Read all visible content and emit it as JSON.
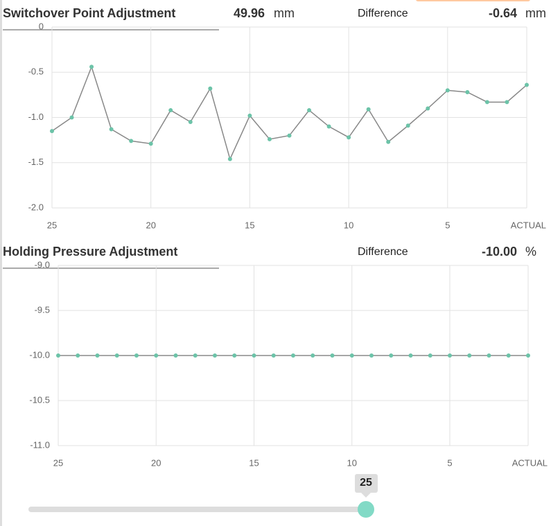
{
  "chart_data": [
    {
      "type": "line",
      "title": "Switchover Point Adjustment",
      "readout": "49.96",
      "unit": "mm",
      "difference_label": "Difference",
      "difference": "-0.64",
      "difference_unit": "mm",
      "categories": [
        "25",
        null,
        null,
        null,
        null,
        "20",
        null,
        null,
        null,
        null,
        "15",
        null,
        null,
        null,
        null,
        "10",
        null,
        null,
        null,
        null,
        "5",
        null,
        null,
        null,
        "ACTUAL"
      ],
      "series": [
        {
          "color": "#6cc3a8",
          "values": [
            -1.15,
            -1.0,
            -0.44,
            -1.13,
            -1.26,
            -1.29,
            -0.92,
            -1.05,
            -0.68,
            -1.46,
            -0.98,
            -1.24,
            -1.2,
            -0.92,
            -1.1,
            -1.22,
            -0.91,
            -1.27,
            -1.09,
            -0.9,
            -0.7,
            -0.72,
            -0.83,
            -0.83,
            -0.64
          ]
        }
      ],
      "ylim": [
        -2,
        0
      ],
      "yticks": [
        0,
        -0.5,
        {
          "value": -1,
          "label": "-1.0"
        },
        -1.5,
        {
          "value": -2,
          "label": "-2.0"
        }
      ],
      "grid": true
    },
    {
      "type": "line",
      "title": "Holding Pressure Adjustment",
      "difference_label": "Difference",
      "difference": "-10.00",
      "difference_unit": "%",
      "categories": [
        "25",
        null,
        null,
        null,
        null,
        "20",
        null,
        null,
        null,
        null,
        "15",
        null,
        null,
        null,
        null,
        "10",
        null,
        null,
        null,
        null,
        "5",
        null,
        null,
        null,
        "ACTUAL"
      ],
      "series": [
        {
          "color": "#6cc3a8",
          "values": [
            -10,
            -10,
            -10,
            -10,
            -10,
            -10,
            -10,
            -10,
            -10,
            -10,
            -10,
            -10,
            -10,
            -10,
            -10,
            -10,
            -10,
            -10,
            -10,
            -10,
            -10,
            -10,
            -10,
            -10,
            -10
          ]
        }
      ],
      "ylim": [
        -11,
        -9
      ],
      "yticks": [
        {
          "value": -9,
          "label": "-9.0"
        },
        -9.5,
        {
          "value": -10,
          "label": "-10.0"
        },
        -10.5,
        {
          "value": -11,
          "label": "-11.0"
        }
      ],
      "grid": true
    }
  ],
  "slider": {
    "value": 25
  }
}
